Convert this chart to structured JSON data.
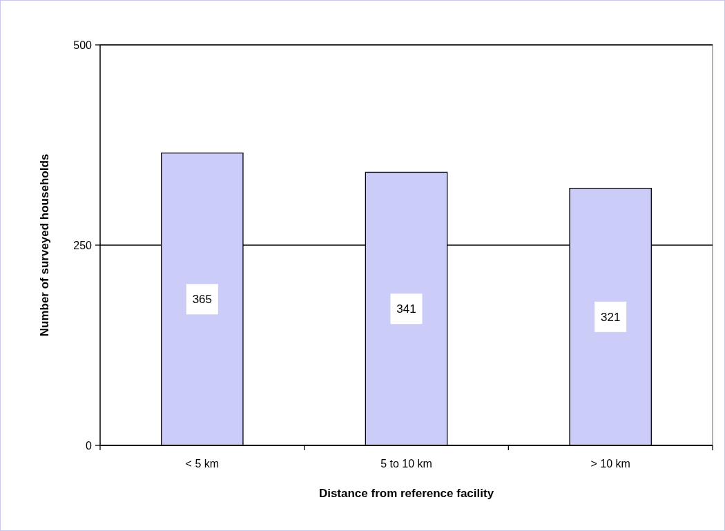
{
  "chart_data": {
    "type": "bar",
    "xlabel": "Distance from reference facility",
    "ylabel": "Number of surveyed households",
    "categories": [
      "< 5 km",
      "5 to 10 km",
      "> 10 km"
    ],
    "values": [
      365,
      341,
      321
    ],
    "color": "#ccccf8",
    "ylim": [
      0,
      500
    ],
    "yticks": [
      0,
      250,
      500
    ],
    "grid": "y",
    "data_labels": true
  }
}
